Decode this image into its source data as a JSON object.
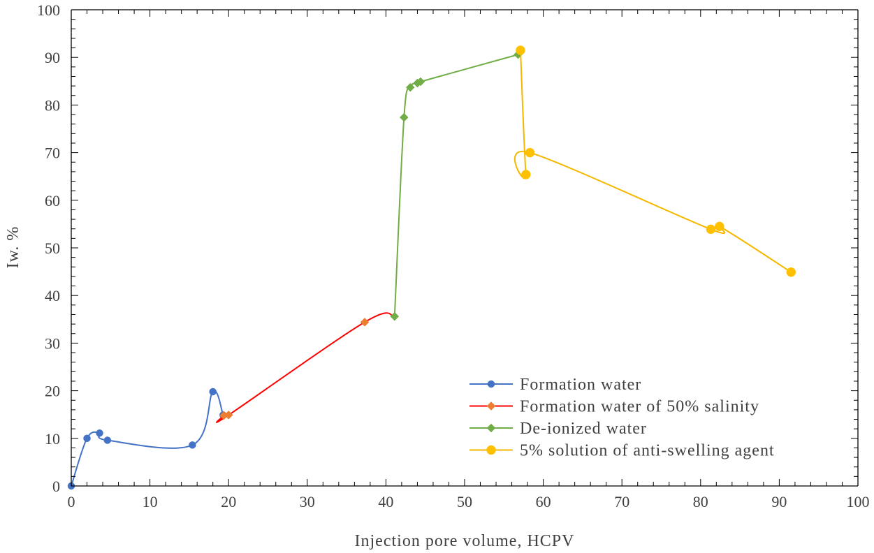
{
  "chart_data": {
    "type": "line",
    "xlabel": "Injection pore volume, HCPV",
    "ylabel": "Iw. %",
    "xlim": [
      0,
      100
    ],
    "ylim": [
      0,
      100
    ],
    "xticks": [
      0,
      10,
      20,
      30,
      40,
      50,
      60,
      70,
      80,
      90,
      100
    ],
    "yticks": [
      0,
      10,
      20,
      30,
      40,
      50,
      60,
      70,
      80,
      90,
      100
    ],
    "grid": false,
    "legend_position": "bottom-right",
    "series": [
      {
        "name": "Formation water",
        "color": "#4472C4",
        "marker": "circle",
        "x": [
          0,
          2.0,
          3.6,
          4.6,
          15.4,
          18.0,
          19.3
        ],
        "y": [
          0,
          10.0,
          11.1,
          9.6,
          8.6,
          19.8,
          14.9
        ]
      },
      {
        "name": "Formation water of 50% salinity",
        "color": "#FF0000",
        "marker_color": "#ED7D31",
        "marker": "diamond",
        "x": [
          19.4,
          20.0,
          37.3,
          41.1
        ],
        "y": [
          14.8,
          14.9,
          34.4,
          35.6
        ]
      },
      {
        "name": "De-ionized water",
        "color": "#70AD47",
        "marker": "diamond",
        "x": [
          41.1,
          42.3,
          43.1,
          44.0,
          44.4,
          56.8
        ],
        "y": [
          35.6,
          77.4,
          83.7,
          84.6,
          84.9,
          90.6
        ]
      },
      {
        "name": "5% solution of anti-swelling agent",
        "color": "#FFC000",
        "line_color": "#F5B800",
        "marker": "circle",
        "x": [
          57.1,
          57.8,
          58.3,
          81.3,
          82.4,
          91.5
        ],
        "y": [
          91.5,
          65.4,
          70.0,
          53.9,
          54.5,
          44.9
        ]
      }
    ]
  }
}
